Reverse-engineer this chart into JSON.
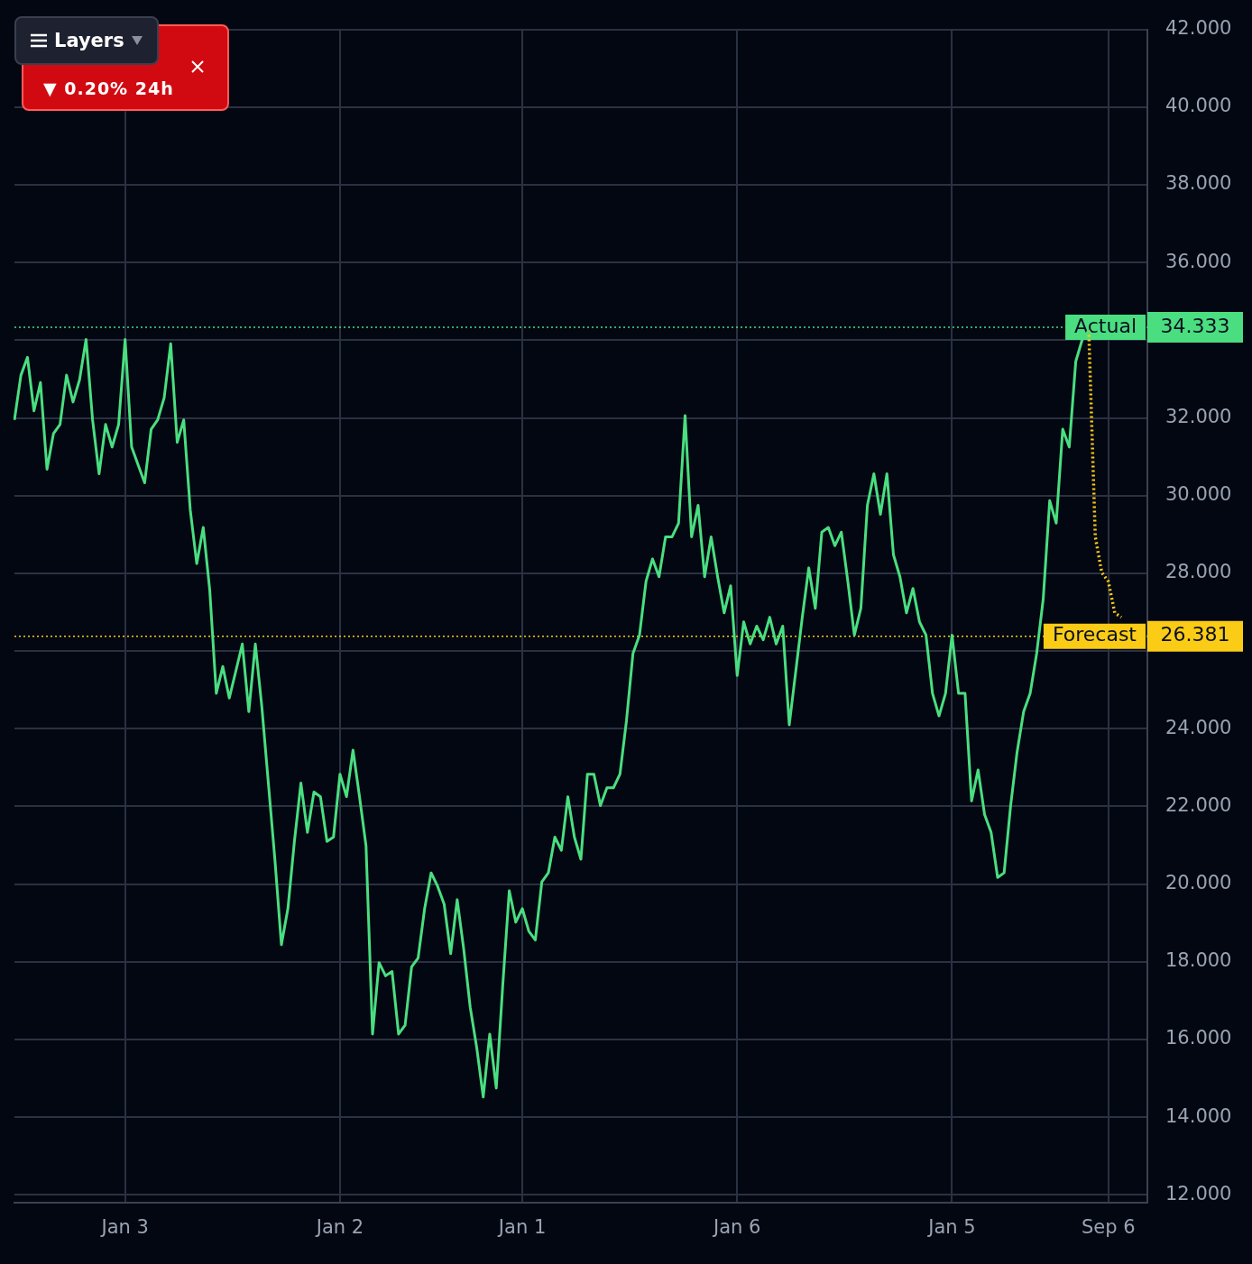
{
  "chart_data": {
    "type": "line",
    "annotations": [
      "▼ 0.20% 24h",
      "Layers",
      "34.333",
      "26.381"
    ],
    "categories": [
      null,
      null,
      null,
      null,
      null,
      null,
      null,
      null,
      null,
      null,
      null,
      null,
      null,
      null,
      null,
      null,
      null,
      "Jan 3",
      null,
      null,
      null,
      null,
      null,
      null,
      null,
      null,
      null,
      null,
      null,
      null,
      null,
      null,
      null,
      null,
      null,
      null,
      null,
      null,
      null,
      null,
      null,
      null,
      null,
      null,
      null,
      null,
      null,
      null,
      null,
      null,
      "Jan 2",
      null,
      null,
      null,
      null,
      null,
      null,
      null,
      null,
      null,
      null,
      null,
      null,
      null,
      null,
      null,
      null,
      null,
      null,
      null,
      null,
      null,
      null,
      null,
      null,
      null,
      null,
      null,
      "Jan 1",
      null,
      null,
      null,
      null,
      null,
      null,
      null,
      null,
      null,
      null,
      null,
      null,
      null,
      null,
      null,
      null,
      null,
      null,
      null,
      null,
      null,
      null,
      null,
      null,
      null,
      null,
      null,
      null,
      null,
      null,
      null,
      null,
      "Jan 6",
      null,
      null,
      null,
      null,
      null,
      null,
      null,
      null,
      null,
      null,
      null,
      null,
      null,
      null,
      null,
      null,
      null,
      null,
      null,
      null,
      null,
      null,
      null,
      null,
      null,
      null,
      null,
      null,
      null,
      null,
      null,
      null,
      "Jan 5",
      null,
      null,
      null,
      null,
      null,
      null,
      null,
      null,
      null,
      null,
      null,
      null,
      null,
      null,
      null,
      null,
      null,
      null,
      null,
      null,
      null,
      null,
      null,
      "Sep 6",
      null,
      null,
      null,
      null,
      null,
      null
    ],
    "ylim": [
      11.8,
      42
    ],
    "yticks": [
      {
        "value": 12,
        "label": "12.000"
      },
      {
        "value": 14,
        "label": "14.000"
      },
      {
        "value": 16,
        "label": "16.000"
      },
      {
        "value": 18,
        "label": "18.000"
      },
      {
        "value": 20,
        "label": "20.000"
      },
      {
        "value": 22,
        "label": "22.000"
      },
      {
        "value": 24,
        "label": "24.000"
      },
      {
        "value": 26,
        "label": null
      },
      {
        "value": 28,
        "label": "28.000"
      },
      {
        "value": 30,
        "label": "30.000"
      },
      {
        "value": 32,
        "label": "32.000"
      },
      {
        "value": 34,
        "label": null
      },
      {
        "value": 36,
        "label": "36.000"
      },
      {
        "value": 38,
        "label": "38.000"
      },
      {
        "value": 40,
        "label": "40.000"
      },
      {
        "value": 42,
        "label": "42.000"
      }
    ],
    "grid": true,
    "legend": false,
    "marker": "none",
    "ref_lines": [
      {
        "axis": "y",
        "value": 34.333,
        "label": "Actual",
        "color": "#4ade80",
        "line_style": "dotted"
      },
      {
        "axis": "y",
        "value": 26.381,
        "label": "Forecast",
        "color": "#facc15",
        "line_style": "dotted"
      }
    ],
    "series": [
      {
        "color": "#4ade80",
        "line_style": "solid",
        "values": [
          31.95,
          33.1,
          33.56,
          32.18,
          32.91,
          30.68,
          31.6,
          31.83,
          33.1,
          32.41,
          32.98,
          34.02,
          31.95,
          30.56,
          31.83,
          31.25,
          31.83,
          34.02,
          31.25,
          30.79,
          30.33,
          31.71,
          31.95,
          32.52,
          33.91,
          31.37,
          31.95,
          29.64,
          28.25,
          29.18,
          27.56,
          24.91,
          25.6,
          24.79,
          25.48,
          26.18,
          24.44,
          26.18,
          24.56,
          22.6,
          20.64,
          18.44,
          19.37,
          21.1,
          22.6,
          21.33,
          22.37,
          22.25,
          21.1,
          21.21,
          22.83,
          22.25,
          23.45,
          22.25,
          20.98,
          16.14,
          17.98,
          17.64,
          17.75,
          16.14,
          16.37,
          17.87,
          18.1,
          19.37,
          20.29,
          19.94,
          19.48,
          18.21,
          19.6,
          18.33,
          16.83,
          15.79,
          14.52,
          16.14,
          14.75,
          17.4,
          19.83,
          19.02,
          19.37,
          18.79,
          18.56,
          20.06,
          20.29,
          21.21,
          20.87,
          22.25,
          21.21,
          20.64,
          22.83,
          22.83,
          22.02,
          22.48,
          22.48,
          22.83,
          24.21,
          25.94,
          26.41,
          27.79,
          28.37,
          27.91,
          28.94,
          28.94,
          29.29,
          32.06,
          28.94,
          29.75,
          27.91,
          28.94,
          27.91,
          26.98,
          27.68,
          25.37,
          26.75,
          26.18,
          26.64,
          26.29,
          26.87,
          26.18,
          26.64,
          24.1,
          25.48,
          26.87,
          28.14,
          27.1,
          29.06,
          29.18,
          28.71,
          29.06,
          27.79,
          26.41,
          27.1,
          29.75,
          30.56,
          29.52,
          30.56,
          28.48,
          27.91,
          26.98,
          27.61,
          26.75,
          26.41,
          24.91,
          24.33,
          24.91,
          26.41,
          24.91,
          24.91,
          22.14,
          22.94,
          21.79,
          21.33,
          20.17,
          20.29,
          22.02,
          23.41,
          24.44,
          24.91,
          25.94,
          27.33,
          29.87,
          29.29,
          31.71,
          31.25,
          33.45,
          34.02,
          34.25,
          null,
          null,
          null,
          null,
          null,
          null,
          null,
          null,
          null
        ]
      },
      {
        "color": "#facc15",
        "line_style": "dotted",
        "values": [
          null,
          null,
          null,
          null,
          null,
          null,
          null,
          null,
          null,
          null,
          null,
          null,
          null,
          null,
          null,
          null,
          null,
          null,
          null,
          null,
          null,
          null,
          null,
          null,
          null,
          null,
          null,
          null,
          null,
          null,
          null,
          null,
          null,
          null,
          null,
          null,
          null,
          null,
          null,
          null,
          null,
          null,
          null,
          null,
          null,
          null,
          null,
          null,
          null,
          null,
          null,
          null,
          null,
          null,
          null,
          null,
          null,
          null,
          null,
          null,
          null,
          null,
          null,
          null,
          null,
          null,
          null,
          null,
          null,
          null,
          null,
          null,
          null,
          null,
          null,
          null,
          null,
          null,
          null,
          null,
          null,
          null,
          null,
          null,
          null,
          null,
          null,
          null,
          null,
          null,
          null,
          null,
          null,
          null,
          null,
          null,
          null,
          null,
          null,
          null,
          null,
          null,
          null,
          null,
          null,
          null,
          null,
          null,
          null,
          null,
          null,
          null,
          null,
          null,
          null,
          null,
          null,
          null,
          null,
          null,
          null,
          null,
          null,
          null,
          null,
          null,
          null,
          null,
          null,
          null,
          null,
          null,
          null,
          null,
          null,
          null,
          null,
          null,
          null,
          null,
          null,
          null,
          null,
          null,
          null,
          null,
          null,
          null,
          null,
          null,
          null,
          null,
          null,
          null,
          null,
          null,
          null,
          null,
          null,
          null,
          null,
          null,
          null,
          null,
          null,
          34.25,
          28.94,
          28.02,
          27.79,
          26.98,
          26.87,
          null,
          null,
          null,
          null
        ]
      }
    ]
  }
}
